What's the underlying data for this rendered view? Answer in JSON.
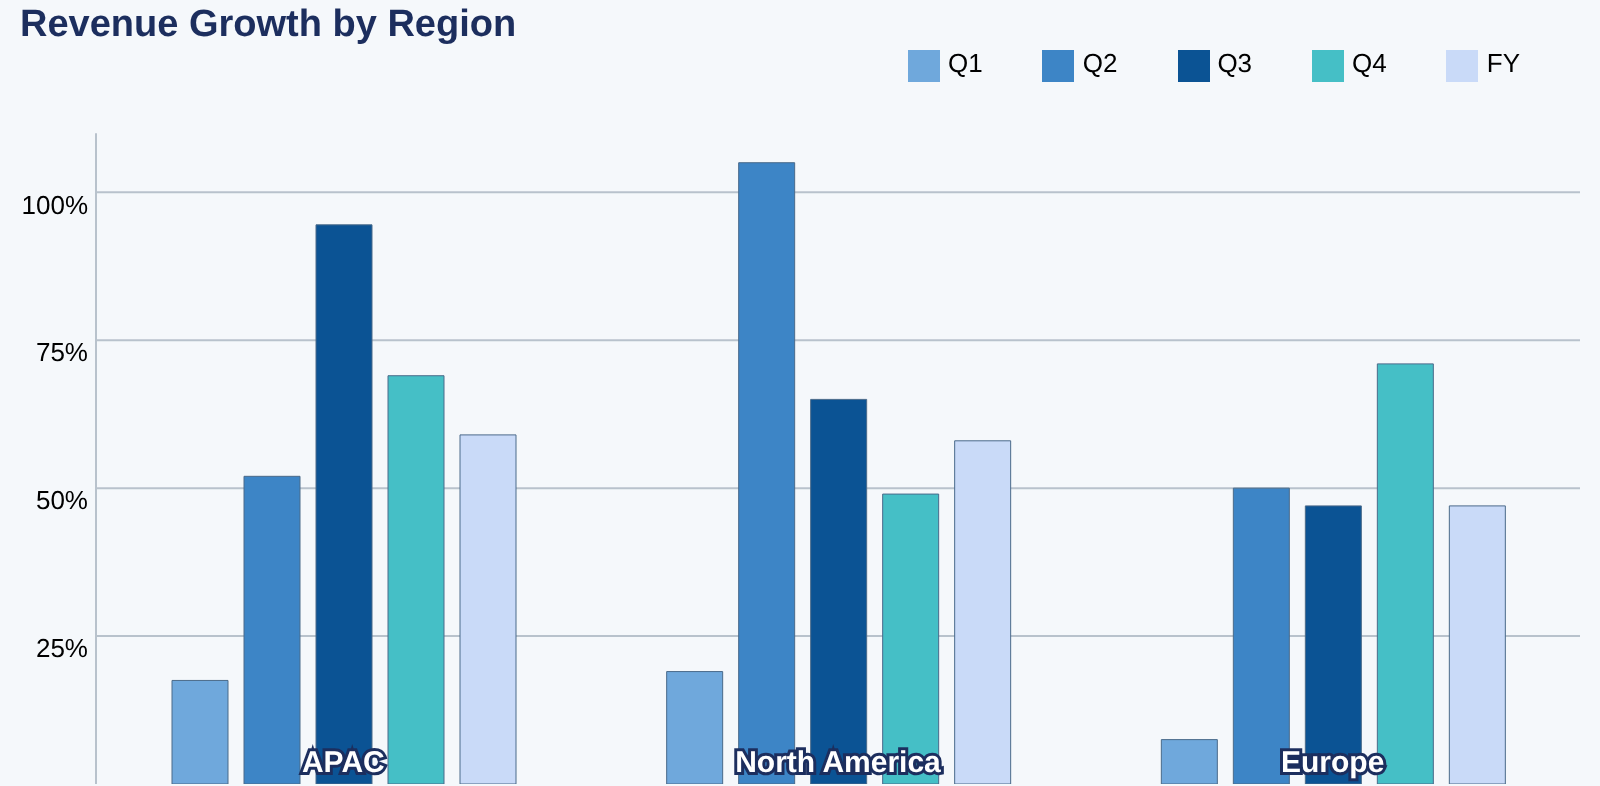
{
  "chart_data": {
    "type": "bar",
    "title": "Revenue Growth by Region",
    "categories": [
      "APAC",
      "North America",
      "Europe"
    ],
    "series": [
      {
        "name": "Q1",
        "color": "#6fa8dc",
        "values": [
          17.5,
          19,
          7.5
        ]
      },
      {
        "name": "Q2",
        "color": "#3d85c6",
        "values": [
          52,
          105,
          50
        ]
      },
      {
        "name": "Q3",
        "color": "#0b5394",
        "values": [
          94.5,
          65,
          47
        ]
      },
      {
        "name": "Q4",
        "color": "#45bfc6",
        "values": [
          69,
          49,
          71
        ]
      },
      {
        "name": "FY",
        "color": "#c9daf8",
        "values": [
          59,
          58,
          47
        ]
      }
    ],
    "ylim": [
      0,
      110
    ],
    "yticks": [
      {
        "value": 25,
        "label": "25%"
      },
      {
        "value": 50,
        "label": "50%"
      },
      {
        "value": 75,
        "label": "75%"
      },
      {
        "value": 100,
        "label": "100%"
      }
    ],
    "grid": "y",
    "legend": "top right"
  }
}
